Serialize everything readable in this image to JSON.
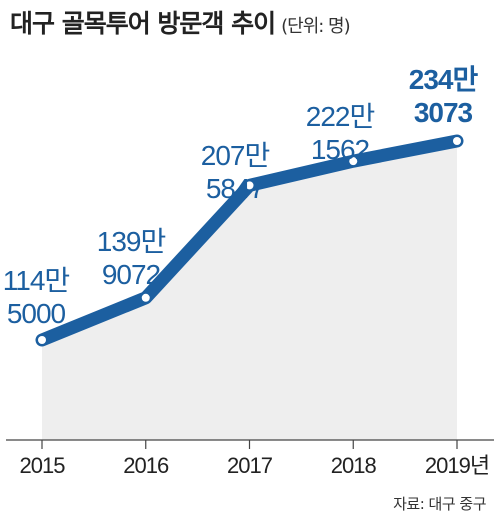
{
  "header": {
    "title": "대구 골목투어 방문객 추이",
    "unit": "(단위: 명)"
  },
  "footer": {
    "source": "자료: 대구 중구"
  },
  "colors": {
    "line": "#1c5fa0",
    "area": "#eeeeee",
    "label": "#1c5fa0",
    "axis": "#444444"
  },
  "chart_data": {
    "type": "area",
    "categories": [
      "2015",
      "2016",
      "2017",
      "2018",
      "2019년"
    ],
    "values": [
      1145000,
      1399072,
      2075847,
      2221562,
      2343073
    ],
    "labels": [
      [
        "114만",
        "5000"
      ],
      [
        "139만",
        "9072"
      ],
      [
        "207만",
        "5847"
      ],
      [
        "222만",
        "1562"
      ],
      [
        "234만",
        "3073"
      ]
    ],
    "title": "대구 골목투어 방문객 추이",
    "unit": "(단위: 명)",
    "xlabel": "",
    "ylabel": "",
    "grid": false,
    "legend": "none"
  }
}
